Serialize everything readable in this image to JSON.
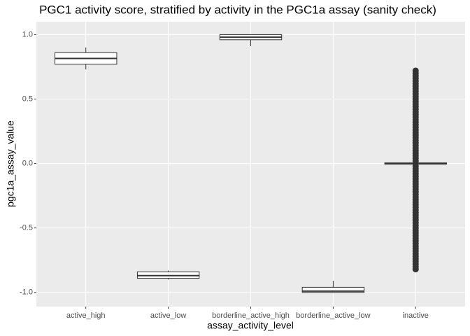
{
  "chart_data": {
    "type": "boxplot",
    "title": "PGC1 activity score, stratified by activity in the PGC1a assay (sanity check)",
    "x_label": "assay_activity_level",
    "y_label": "pgc1a_assay_value",
    "categories": [
      "active_high",
      "active_low",
      "borderline_active_high",
      "borderline_active_low",
      "inactive"
    ],
    "boxes": [
      {
        "min": 0.73,
        "q1": 0.77,
        "median": 0.815,
        "q3": 0.86,
        "max": 0.9
      },
      {
        "min": -0.9,
        "q1": -0.89,
        "median": -0.87,
        "q3": -0.84,
        "max": -0.83
      },
      {
        "min": 0.91,
        "q1": 0.96,
        "median": 0.98,
        "q3": 1.0,
        "max": 1.0
      },
      {
        "min": -1.0,
        "q1": -1.0,
        "median": -0.99,
        "q3": -0.96,
        "max": -0.91
      },
      {
        "min": -0.01,
        "q1": -0.005,
        "median": 0,
        "q3": 0.005,
        "max": 0.01,
        "outliers": [
          0.72,
          0.7,
          0.68,
          0.66,
          0.64,
          0.62,
          0.6,
          0.58,
          0.56,
          0.54,
          0.52,
          0.5,
          0.48,
          0.46,
          0.44,
          0.42,
          0.4,
          0.38,
          0.36,
          0.34,
          0.32,
          0.3,
          0.28,
          0.26,
          0.24,
          0.22,
          0.2,
          0.18,
          0.16,
          0.14,
          0.12,
          0.1,
          0.08,
          0.06,
          0.04,
          0.02,
          -0.02,
          -0.04,
          -0.06,
          -0.08,
          -0.1,
          -0.12,
          -0.14,
          -0.16,
          -0.18,
          -0.2,
          -0.22,
          -0.24,
          -0.26,
          -0.28,
          -0.3,
          -0.32,
          -0.34,
          -0.36,
          -0.38,
          -0.4,
          -0.42,
          -0.44,
          -0.46,
          -0.48,
          -0.5,
          -0.52,
          -0.54,
          -0.56,
          -0.58,
          -0.6,
          -0.62,
          -0.64,
          -0.66,
          -0.68,
          -0.7,
          -0.72,
          -0.74,
          -0.76,
          -0.78,
          -0.8,
          -0.82
        ]
      }
    ],
    "ylim": [
      -1.11,
      1.1
    ],
    "yticks": [
      {
        "value": -1,
        "label": "-1.0"
      },
      -0.5,
      {
        "value": 0,
        "label": "0.0"
      },
      0.5,
      {
        "value": 1,
        "label": "1.0"
      }
    ],
    "grid": true,
    "panel_color": "#ebebeb",
    "box_color": "#333333",
    "fill": "#ffffff"
  }
}
